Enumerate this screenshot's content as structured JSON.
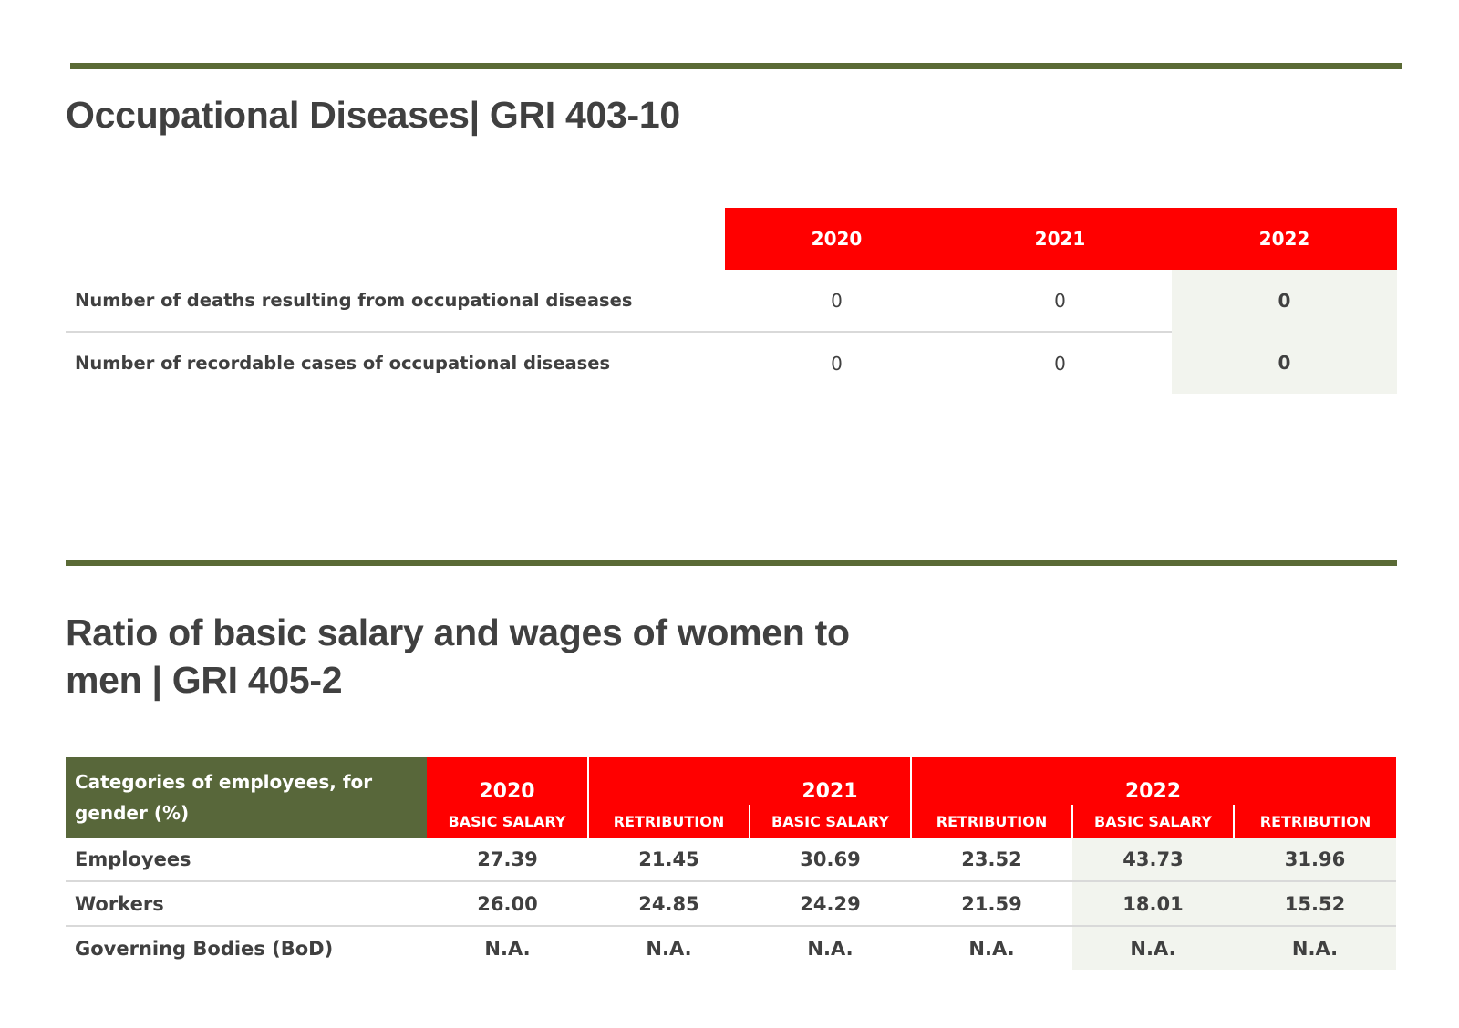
{
  "section1": {
    "title": "Occupational Diseases| GRI 403-10",
    "years": [
      "2020",
      "2021",
      "2022"
    ],
    "rows": [
      {
        "label": "Number of deaths resulting from occupational diseases",
        "values": [
          "0",
          "0",
          "0"
        ]
      },
      {
        "label": "Number of recordable cases of occupational diseases",
        "values": [
          "0",
          "0",
          "0"
        ]
      }
    ]
  },
  "section2": {
    "title_line1": "Ratio of basic salary and wages of women to",
    "title_line2": "men | GRI 405-2",
    "category_header_line1": "Categories of employees, for",
    "category_header_line2": "gender (%)",
    "years": [
      "2020",
      "2021",
      "2022"
    ],
    "sub_basic": "BASIC SALARY",
    "sub_retribution": "RETRIBUTION",
    "rows": [
      {
        "label": "Employees",
        "values": [
          "27.39",
          "21.45",
          "30.69",
          "23.52",
          "43.73",
          "31.96"
        ]
      },
      {
        "label": "Workers",
        "values": [
          "26.00",
          "24.85",
          "24.29",
          "21.59",
          "18.01",
          "15.52"
        ]
      },
      {
        "label": "Governing Bodies (BoD)",
        "values": [
          "N.A.",
          "N.A.",
          "N.A.",
          "N.A.",
          "N.A.",
          "N.A."
        ]
      }
    ]
  },
  "colors": {
    "rule_green": "#5a6a35",
    "header_red": "#ff0000",
    "category_green": "#58673a",
    "highlight": "#f2f4ee"
  }
}
